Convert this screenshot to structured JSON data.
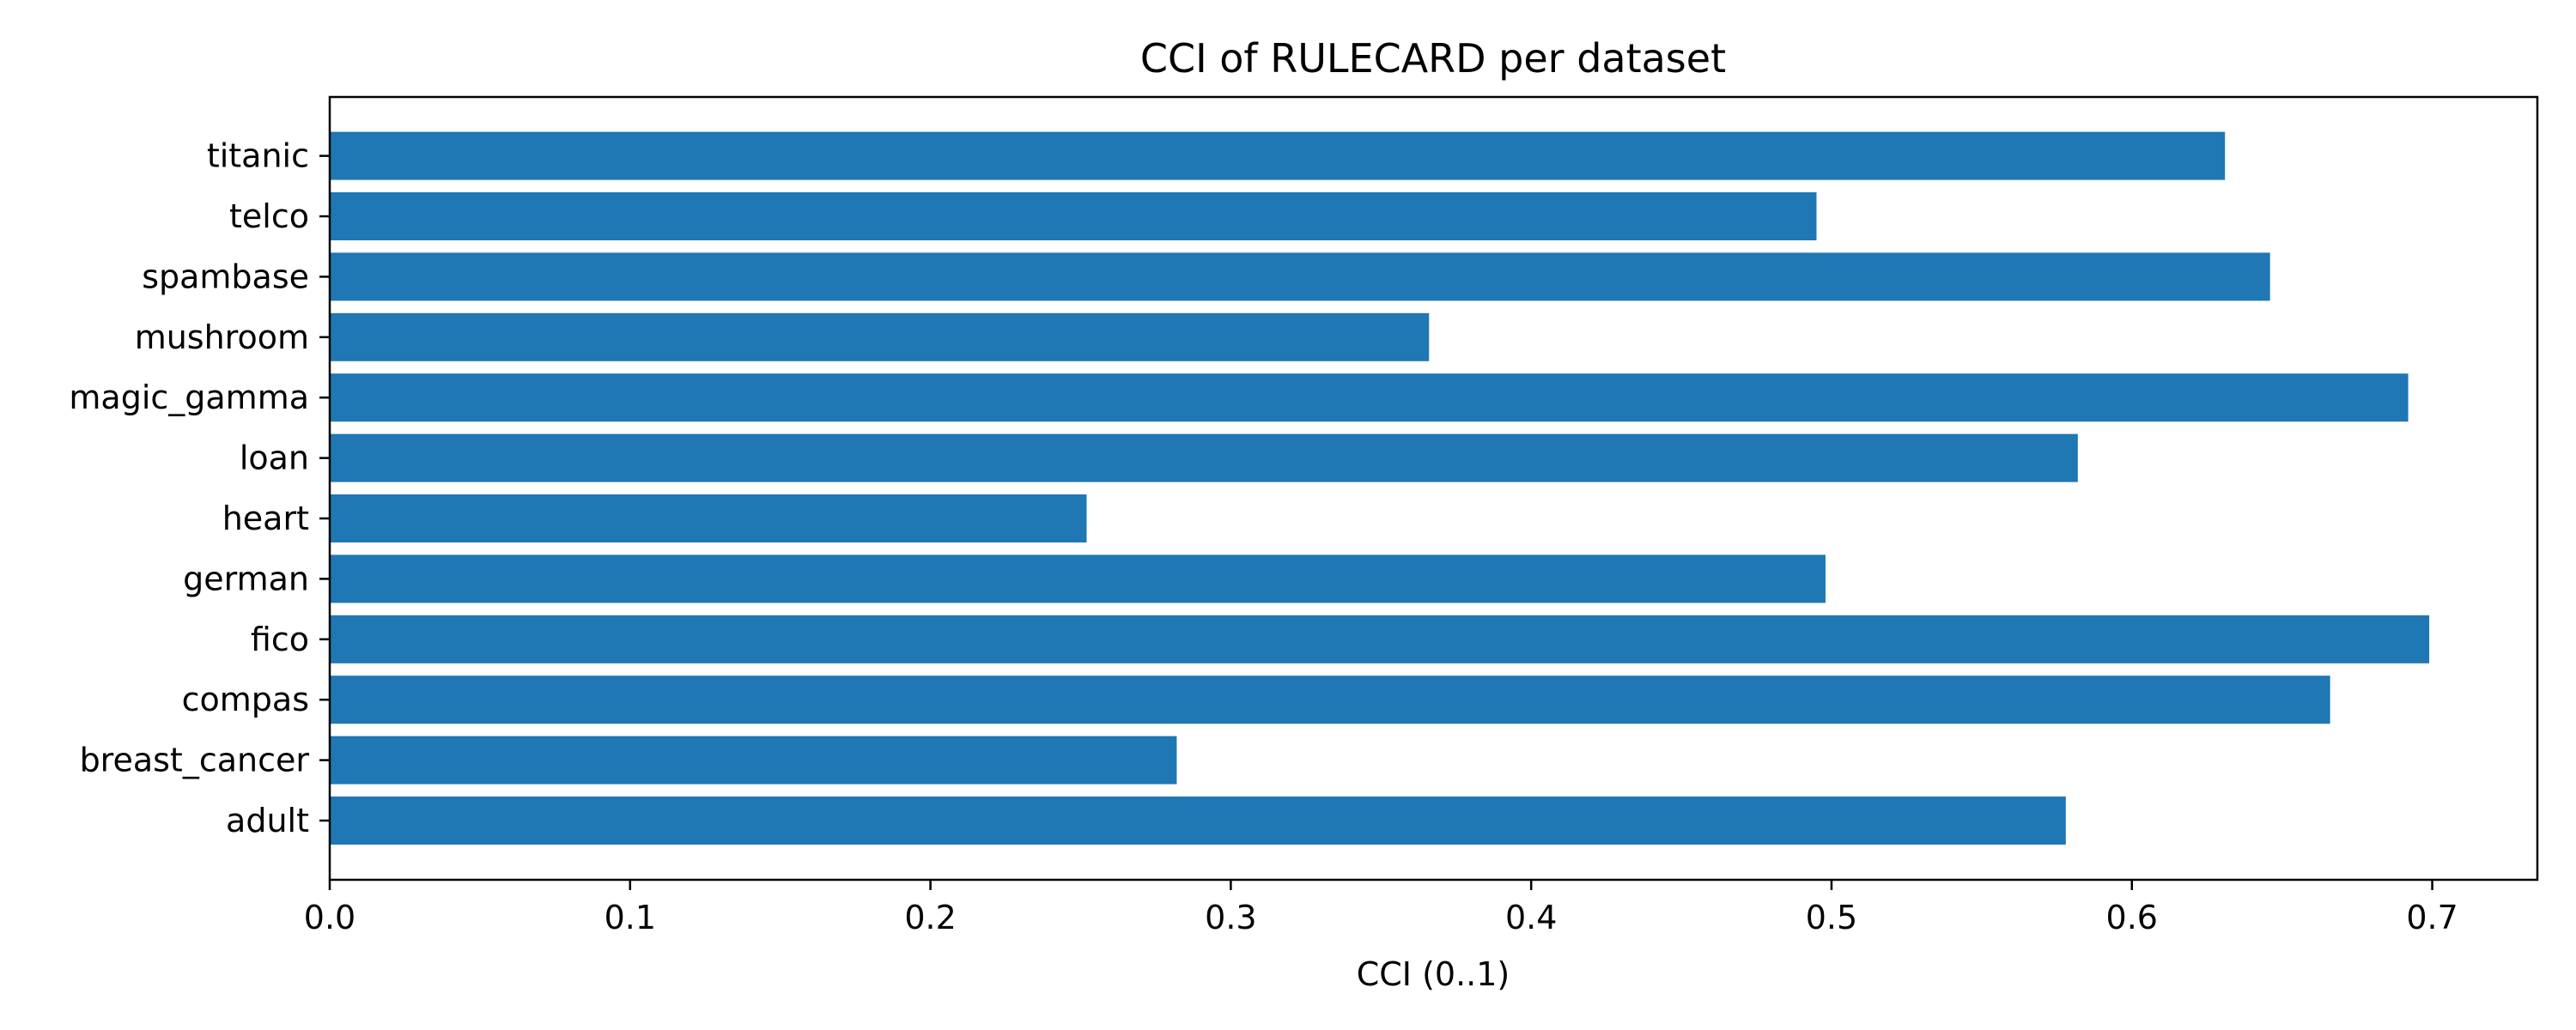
{
  "chart_data": {
    "type": "bar",
    "orientation": "horizontal",
    "title": "CCI of RULECARD per dataset",
    "xlabel": "CCI (0..1)",
    "ylabel": "",
    "xlim": [
      0,
      0.735
    ],
    "x_ticks": [
      "0.0",
      "0.1",
      "0.2",
      "0.3",
      "0.4",
      "0.5",
      "0.6",
      "0.7"
    ],
    "categories": [
      "adult",
      "breast_cancer",
      "compas",
      "fico",
      "german",
      "heart",
      "loan",
      "magic_gamma",
      "mushroom",
      "spambase",
      "telco",
      "titanic"
    ],
    "values": [
      0.578,
      0.282,
      0.666,
      0.699,
      0.498,
      0.252,
      0.582,
      0.692,
      0.366,
      0.646,
      0.495,
      0.631
    ],
    "bar_color": "#1f77b4",
    "grid": false,
    "legend": "none"
  }
}
